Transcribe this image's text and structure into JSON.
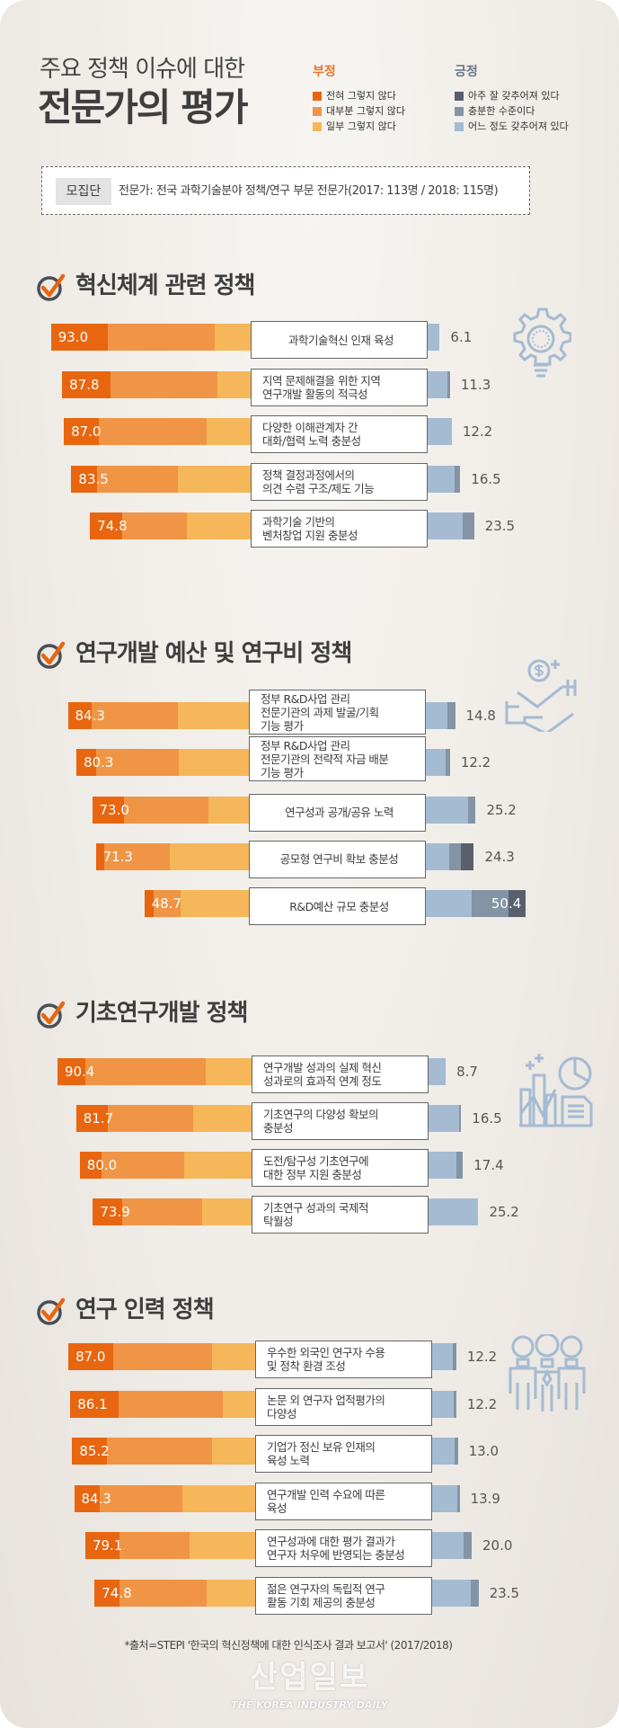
{
  "header": {
    "title_line1": "주요 정책 이슈에 대한",
    "title_line2": "전문가의 평가"
  },
  "legend": {
    "negative_heading": "부정",
    "positive_heading": "긍정",
    "negative_items": [
      {
        "label": "전혀 그렇지 않다",
        "color": "#e8660f"
      },
      {
        "label": "대부분 그렇지 않다",
        "color": "#f09545"
      },
      {
        "label": "일부 그렇지 않다",
        "color": "#f6b65a"
      }
    ],
    "positive_items": [
      {
        "label": "아주 잘 갖추어져 있다",
        "color": "#59606b"
      },
      {
        "label": "충분한 수준이다",
        "color": "#8494a5"
      },
      {
        "label": "어느 정도 갖추어져 있다",
        "color": "#a4bbd2"
      }
    ]
  },
  "population": {
    "label": "모집단",
    "text": "전문가: 전국 과학기술분야 정책/연구 부문 전문가(2017: 113명 / 2018: 115명)"
  },
  "chart_data": {
    "type": "bar",
    "stacked": true,
    "diverging": true,
    "unit": "%",
    "negative_series": [
      "전혀 그렇지 않다",
      "대부분 그렇지 않다",
      "일부 그렇지 않다"
    ],
    "positive_series": [
      "아주 잘 갖추어져 있다",
      "충분한 수준이다",
      "어느 정도 갖추어져 있다"
    ],
    "groups": [
      {
        "title": "혁신체계 관련 정책",
        "icon": "gear-lightbulb-icon",
        "rows": [
          {
            "label": "과학기술혁신 인재 육성",
            "negative_total": "93.0",
            "positive_total": "6.1",
            "negative": [
              26.3,
              49.8,
              16.9
            ],
            "positive": [
              0,
              0,
              6.1
            ]
          },
          {
            "label": "지역 문제해결을 위한 지역\n연구개발 활동의 적극성",
            "negative_total": "87.8",
            "positive_total": "11.3",
            "negative": [
              22.6,
              49.6,
              15.6
            ],
            "positive": [
              0,
              1.3,
              10.0
            ]
          },
          {
            "label": "다양한 이해관계자 간\n대화/협력 노력 충분성",
            "negative_total": "87.0",
            "positive_total": "12.2",
            "negative": [
              16.2,
              50.1,
              20.7
            ],
            "positive": [
              0,
              0,
              12.2
            ]
          },
          {
            "label": "정책 결정과정에서의\n의견 수렴 구조/제도 기능",
            "negative_total": "83.5",
            "positive_total": "16.5",
            "negative": [
              11.8,
              38.0,
              33.7
            ],
            "positive": [
              0,
              2.9,
              13.6
            ]
          },
          {
            "label": "과학기술 기반의\n벤처창업 지원 충분성",
            "negative_total": "74.8",
            "positive_total": "23.5",
            "negative": [
              15.1,
              30.2,
              29.5
            ],
            "positive": [
              0,
              5.7,
              17.8
            ]
          }
        ]
      },
      {
        "title": "연구개발 예산 및 연구비 정책",
        "icon": "money-hand-icon",
        "rows": [
          {
            "label": "정부 R&D사업 관리\n전문기관의 과제 발굴/기획\n기능 평가",
            "negative_total": "84.3",
            "positive_total": "14.8",
            "negative": [
              10.9,
              40.2,
              33.2
            ],
            "positive": [
              0,
              4.0,
              10.8
            ]
          },
          {
            "label": "정부 R&D사업 관리\n전문기관의 전략적 자금 배분\n기능 평가",
            "negative_total": "80.3",
            "positive_total": "12.2",
            "negative": [
              9.0,
              38.5,
              32.8
            ],
            "positive": [
              0,
              2.1,
              10.1
            ]
          },
          {
            "label": "연구성과 공개/공유 노력",
            "negative_total": "73.0",
            "positive_total": "25.2",
            "negative": [
              14.9,
              39.1,
              19.0
            ],
            "positive": [
              0,
              4.0,
              21.2
            ]
          },
          {
            "label": "공모형 연구비 확보 충분성",
            "negative_total": "71.3",
            "positive_total": "24.3",
            "negative": [
              4.1,
              30.4,
              36.8
            ],
            "positive": [
              6.5,
              6.1,
              11.7
            ]
          },
          {
            "label": "R&D예산 규모 충분성",
            "negative_total": "48.7",
            "positive_total": "50.4",
            "negative": [
              4.4,
              12.7,
              31.6
            ],
            "positive": [
              8.7,
              18.7,
              23.0
            ]
          }
        ]
      },
      {
        "title": "기초연구개발 정책",
        "icon": "chart-report-icon",
        "rows": [
          {
            "label": "연구개발 성과의 실제 혁신\n성과로의 효과적 연계 정도",
            "negative_total": "90.4",
            "positive_total": "8.7",
            "negative": [
              12.9,
              56.3,
              21.2
            ],
            "positive": [
              0,
              0,
              8.7
            ]
          },
          {
            "label": "기초연구의 다양성 확보의\n충분성",
            "negative_total": "81.7",
            "positive_total": "16.5",
            "negative": [
              14.9,
              39.6,
              27.2
            ],
            "positive": [
              0,
              1.0,
              15.5
            ]
          },
          {
            "label": "도전/탐구성 기초연구에\n대한 정부 지원 충분성",
            "negative_total": "80.0",
            "positive_total": "17.4",
            "negative": [
              10.2,
              38.5,
              31.3
            ],
            "positive": [
              0,
              3.4,
              14.0
            ]
          },
          {
            "label": "기초연구 성과의 국제적\n탁월성",
            "negative_total": "73.9",
            "positive_total": "25.2",
            "negative": [
              13.6,
              37.1,
              23.2
            ],
            "positive": [
              0,
              0,
              25.2
            ]
          }
        ]
      },
      {
        "title": "연구 인력 정책",
        "icon": "people-lightbulb-icon",
        "rows": [
          {
            "label": "우수한 외국인 연구자 수용\n및 정착 환경 조성",
            "negative_total": "87.0",
            "positive_total": "12.2",
            "negative": [
              21.0,
              46.0,
              20.0
            ],
            "positive": [
              0,
              1.7,
              10.5
            ]
          },
          {
            "label": "논문 외 연구자 업적평가의\n다양성",
            "negative_total": "86.1",
            "positive_total": "12.2",
            "negative": [
              22.4,
              48.7,
              15.0
            ],
            "positive": [
              0,
              1.5,
              10.7
            ]
          },
          {
            "label": "기업가 정신 보유 인재의\n육성 노력",
            "negative_total": "85.2",
            "positive_total": "13.0",
            "negative": [
              16.1,
              49.1,
              20.0
            ],
            "positive": [
              0,
              1.8,
              11.2
            ]
          },
          {
            "label": "연구개발 인력 수요에 따른\n육성",
            "negative_total": "84.3",
            "positive_total": "13.9",
            "negative": [
              11.9,
              38.5,
              33.9
            ],
            "positive": [
              0,
              1.0,
              12.9
            ]
          },
          {
            "label": "연구성과에 대한 평가 결과가\n연구자 처우에 반영되는 충분성",
            "negative_total": "79.1",
            "positive_total": "20.0",
            "negative": [
              16.0,
              32.6,
              30.5
            ],
            "positive": [
              0,
              4.2,
              15.8
            ]
          },
          {
            "label": "젊은 연구자의 독립적 연구\n활동 기회 제공의 충분성",
            "negative_total": "74.8",
            "positive_total": "23.5",
            "negative": [
              11.6,
              40.6,
              22.6
            ],
            "positive": [
              0,
              4.0,
              19.5
            ]
          }
        ]
      }
    ]
  },
  "source": "*출처=STEPI '한국의 혁신정책에 대한 인식조사 결과 보고서' (2017/2018)",
  "watermark": {
    "logo": "산업일보",
    "tagline": "THE KOREA INDUSTRY DAILY"
  }
}
